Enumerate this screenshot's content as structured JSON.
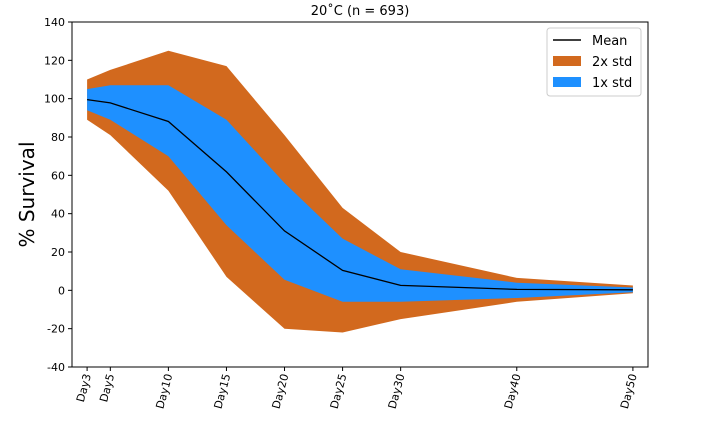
{
  "chart_data": {
    "type": "area",
    "title": "20˚C (n = 693)",
    "xlabel": "",
    "ylabel": "% Survival",
    "x": [
      3,
      5,
      10,
      15,
      20,
      25,
      30,
      40,
      50
    ],
    "x_tick_labels": [
      "Day3",
      "Day5",
      "Day10",
      "Day15",
      "Day20",
      "Day25",
      "Day30",
      "Day40",
      "Day50"
    ],
    "ylim": [
      -40,
      140
    ],
    "y_ticks": [
      -40,
      -20,
      0,
      20,
      40,
      60,
      80,
      100,
      120,
      140
    ],
    "grid": false,
    "legend_position": "top-right",
    "series": [
      {
        "name": "Mean",
        "kind": "line",
        "color": "#000000",
        "values": [
          99.5,
          97.8,
          88.1,
          61.8,
          31.0,
          10.4,
          2.6,
          0.5,
          0.3
        ]
      },
      {
        "name": "2x std",
        "kind": "band",
        "color": "#d2691e",
        "upper": [
          110,
          115,
          125,
          117,
          81,
          43,
          20,
          6.5,
          2.5
        ],
        "lower": [
          89,
          81,
          52,
          7,
          -20,
          -22,
          -15,
          -6,
          -1.5
        ]
      },
      {
        "name": "1x std",
        "kind": "band",
        "color": "#1e90ff",
        "upper": [
          105,
          107,
          107,
          89,
          56,
          27,
          11,
          4,
          1.5
        ],
        "lower": [
          94,
          89,
          70,
          34,
          5.5,
          -6,
          -6,
          -4,
          -1
        ]
      }
    ],
    "legend": [
      "Mean",
      "2x std",
      "1x std"
    ]
  }
}
